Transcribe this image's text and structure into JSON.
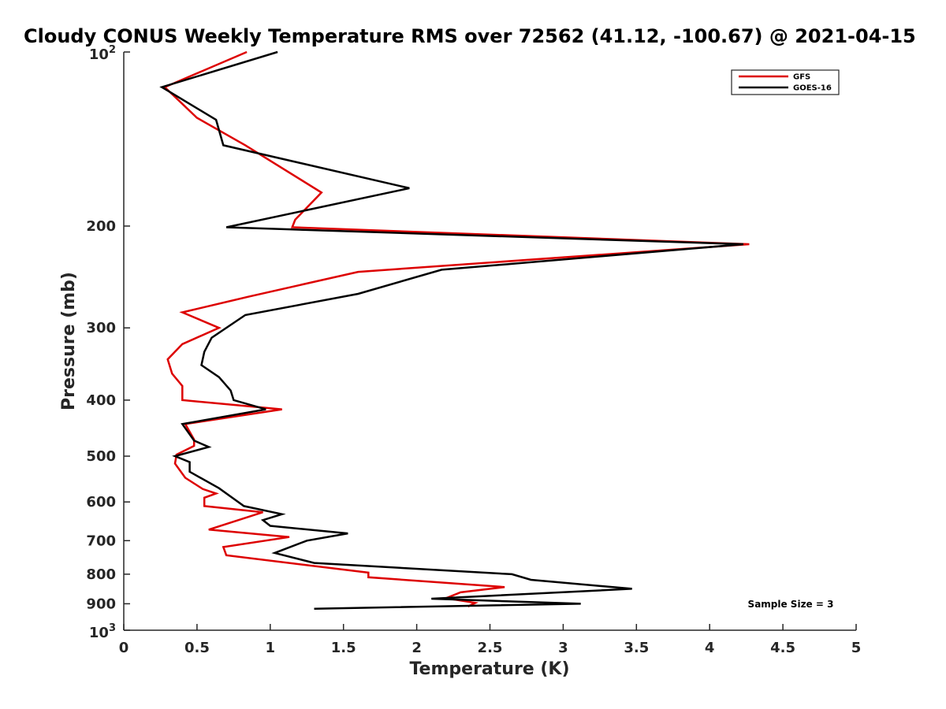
{
  "chart_data": {
    "type": "line",
    "title": "Cloudy CONUS Weekly Temperature RMS over 72562 (41.12, -100.67) @ 2021-04-15",
    "xlabel": "Temperature (K)",
    "ylabel": "Pressure (mb)",
    "xlim": [
      0,
      5
    ],
    "ylim": [
      100,
      1000
    ],
    "y_scale": "log",
    "y_reversed": true,
    "grid": false,
    "legend_position": "top-right",
    "x_ticks": [
      0,
      0.5,
      1,
      1.5,
      2,
      2.5,
      3,
      3.5,
      4,
      4.5,
      5
    ],
    "x_tick_labels": [
      "0",
      "0.5",
      "1",
      "1.5",
      "2",
      "2.5",
      "3",
      "3.5",
      "4",
      "4.5",
      "5"
    ],
    "y_ticks": [
      200,
      300,
      400,
      500,
      600,
      700,
      800,
      900
    ],
    "y_tick_labels": [
      "200",
      "300",
      "400",
      "500",
      "600",
      "700",
      "800",
      "900"
    ],
    "y_end_tick_labels": [
      {
        "value": 100,
        "base": "10",
        "exp": "2"
      },
      {
        "value": 1000,
        "base": "10",
        "exp": "3"
      }
    ],
    "annotation": "Sample Size = 3",
    "series": [
      {
        "name": "GFS",
        "color": "#dd0000",
        "points": [
          {
            "x": 0.84,
            "y": 100
          },
          {
            "x": 0.28,
            "y": 115
          },
          {
            "x": 0.5,
            "y": 130
          },
          {
            "x": 0.83,
            "y": 145
          },
          {
            "x": 1.35,
            "y": 175
          },
          {
            "x": 1.17,
            "y": 195
          },
          {
            "x": 1.15,
            "y": 201
          },
          {
            "x": 4.27,
            "y": 215
          },
          {
            "x": 1.6,
            "y": 240
          },
          {
            "x": 0.85,
            "y": 265
          },
          {
            "x": 0.4,
            "y": 282
          },
          {
            "x": 0.65,
            "y": 300
          },
          {
            "x": 0.4,
            "y": 320
          },
          {
            "x": 0.3,
            "y": 340
          },
          {
            "x": 0.33,
            "y": 360
          },
          {
            "x": 0.4,
            "y": 378
          },
          {
            "x": 0.4,
            "y": 400
          },
          {
            "x": 1.08,
            "y": 415
          },
          {
            "x": 0.42,
            "y": 440
          },
          {
            "x": 0.48,
            "y": 468
          },
          {
            "x": 0.48,
            "y": 480
          },
          {
            "x": 0.36,
            "y": 497
          },
          {
            "x": 0.35,
            "y": 515
          },
          {
            "x": 0.42,
            "y": 545
          },
          {
            "x": 0.54,
            "y": 570
          },
          {
            "x": 0.63,
            "y": 580
          },
          {
            "x": 0.55,
            "y": 590
          },
          {
            "x": 0.55,
            "y": 610
          },
          {
            "x": 0.95,
            "y": 625
          },
          {
            "x": 0.58,
            "y": 670
          },
          {
            "x": 1.13,
            "y": 690
          },
          {
            "x": 0.68,
            "y": 718
          },
          {
            "x": 0.7,
            "y": 742
          },
          {
            "x": 1.67,
            "y": 795
          },
          {
            "x": 1.67,
            "y": 810
          },
          {
            "x": 2.6,
            "y": 842
          },
          {
            "x": 2.3,
            "y": 860
          },
          {
            "x": 2.2,
            "y": 880
          },
          {
            "x": 2.4,
            "y": 897
          },
          {
            "x": 2.35,
            "y": 910
          }
        ]
      },
      {
        "name": "GOES-16",
        "color": "#000000",
        "points": [
          {
            "x": 1.05,
            "y": 100
          },
          {
            "x": 0.26,
            "y": 115
          },
          {
            "x": 0.63,
            "y": 131
          },
          {
            "x": 0.68,
            "y": 145
          },
          {
            "x": 1.95,
            "y": 172
          },
          {
            "x": 0.7,
            "y": 201
          },
          {
            "x": 4.23,
            "y": 215
          },
          {
            "x": 2.17,
            "y": 238
          },
          {
            "x": 1.6,
            "y": 262
          },
          {
            "x": 0.83,
            "y": 285
          },
          {
            "x": 0.6,
            "y": 312
          },
          {
            "x": 0.55,
            "y": 330
          },
          {
            "x": 0.53,
            "y": 348
          },
          {
            "x": 0.65,
            "y": 365
          },
          {
            "x": 0.73,
            "y": 385
          },
          {
            "x": 0.75,
            "y": 400
          },
          {
            "x": 0.97,
            "y": 415
          },
          {
            "x": 0.4,
            "y": 440
          },
          {
            "x": 0.48,
            "y": 470
          },
          {
            "x": 0.58,
            "y": 482
          },
          {
            "x": 0.35,
            "y": 500
          },
          {
            "x": 0.45,
            "y": 512
          },
          {
            "x": 0.45,
            "y": 532
          },
          {
            "x": 0.65,
            "y": 568
          },
          {
            "x": 0.82,
            "y": 610
          },
          {
            "x": 1.08,
            "y": 630
          },
          {
            "x": 0.95,
            "y": 645
          },
          {
            "x": 1.0,
            "y": 660
          },
          {
            "x": 1.53,
            "y": 680
          },
          {
            "x": 1.25,
            "y": 700
          },
          {
            "x": 1.03,
            "y": 735
          },
          {
            "x": 1.3,
            "y": 765
          },
          {
            "x": 2.65,
            "y": 800
          },
          {
            "x": 2.78,
            "y": 818
          },
          {
            "x": 3.47,
            "y": 848
          },
          {
            "x": 2.1,
            "y": 882
          },
          {
            "x": 3.12,
            "y": 900
          },
          {
            "x": 1.3,
            "y": 918
          }
        ]
      }
    ]
  }
}
